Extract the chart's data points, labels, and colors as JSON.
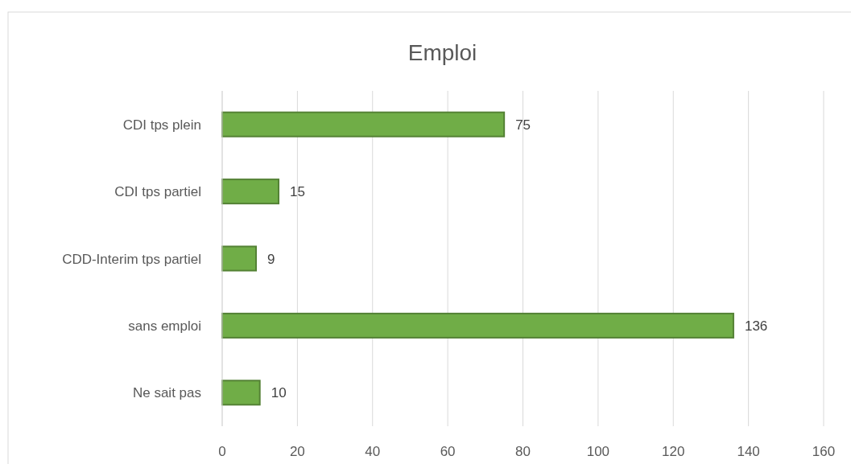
{
  "chart_data": {
    "type": "bar",
    "orientation": "horizontal",
    "title": "Emploi",
    "categories": [
      "CDI tps plein",
      "CDI tps partiel",
      "CDD-Interim tps partiel",
      "sans emploi",
      "Ne sait pas"
    ],
    "values": [
      75,
      15,
      9,
      136,
      10
    ],
    "color": "#70ad47",
    "xlim": [
      0,
      160
    ],
    "xticks": [
      0,
      20,
      40,
      60,
      80,
      100,
      120,
      140,
      160
    ],
    "grid": "x",
    "data_labels": true
  }
}
